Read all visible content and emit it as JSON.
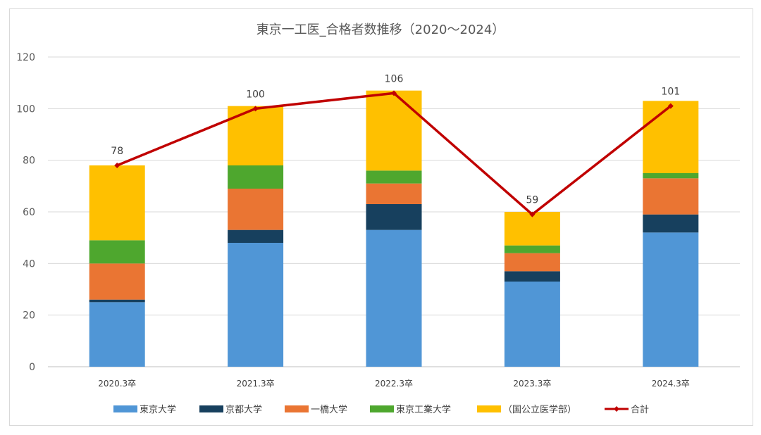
{
  "chart_data": {
    "type": "bar",
    "stacked": true,
    "title": "東京一工医_合格者数推移（2020～2024）",
    "categories": [
      "2020.3卒",
      "2021.3卒",
      "2022.3卒",
      "2023.3卒",
      "2024.3卒"
    ],
    "ylim": [
      0,
      120
    ],
    "yticks": [
      0,
      20,
      40,
      60,
      80,
      100,
      120
    ],
    "grid": true,
    "legend_position": "bottom",
    "series": [
      {
        "name": "東京大学",
        "color": "#5096d6",
        "values": [
          25,
          48,
          53,
          33,
          52
        ]
      },
      {
        "name": "京都大学",
        "color": "#17405e",
        "values": [
          1,
          5,
          10,
          4,
          7
        ]
      },
      {
        "name": "一橋大学",
        "color": "#ea7533",
        "values": [
          14,
          16,
          8,
          7,
          14
        ]
      },
      {
        "name": "東京工業大学",
        "color": "#4ea72e",
        "values": [
          9,
          9,
          5,
          3,
          2
        ]
      },
      {
        "name": "（国公立医学部）",
        "color": "#ffc000",
        "values": [
          29,
          23,
          31,
          13,
          28
        ]
      }
    ],
    "line_series": {
      "name": "合計",
      "color": "#c00000",
      "values": [
        78,
        100,
        106,
        59,
        101
      ],
      "labels": [
        "78",
        "100",
        "106",
        "59",
        "101"
      ]
    }
  }
}
